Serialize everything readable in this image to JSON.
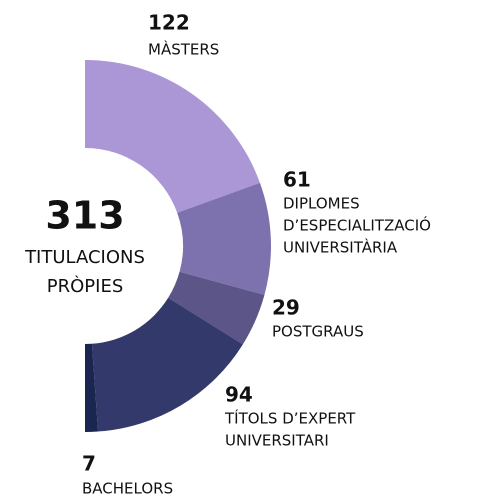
{
  "chart_data": {
    "type": "half-donut",
    "total": 313,
    "center_label": [
      "TITULACIONS",
      "PRÒPIES"
    ],
    "categories": [
      [
        "MÀSTERS"
      ],
      [
        "DIPLOMES",
        "D’ESPECIALITZACIÓ",
        "UNIVERSITÀRIA"
      ],
      [
        "POSTGRAUS"
      ],
      [
        "TÍTOLS D’EXPERT",
        "UNIVERSITARI"
      ],
      [
        "BACHELORS"
      ]
    ],
    "values": [
      122,
      61,
      29,
      94,
      7
    ],
    "colors": [
      "#ab96d6",
      "#7e72ae",
      "#5b5588",
      "#333a6b",
      "#1a2550"
    ]
  }
}
